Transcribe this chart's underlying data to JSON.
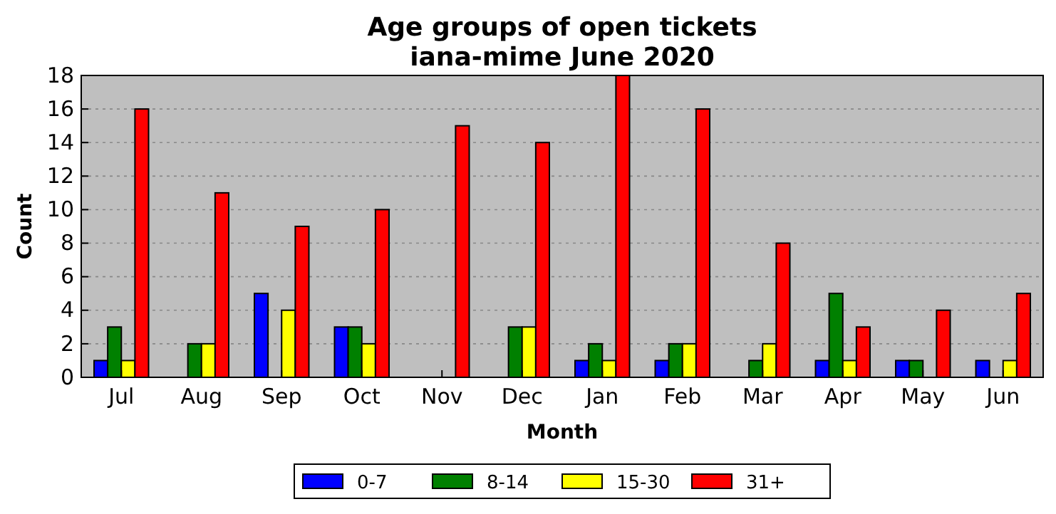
{
  "chart_data": {
    "type": "bar",
    "title": "Age groups of open tickets\niana-mime June 2020",
    "xlabel": "Month",
    "ylabel": "Count",
    "categories": [
      "Jul",
      "Aug",
      "Sep",
      "Oct",
      "Nov",
      "Dec",
      "Jan",
      "Feb",
      "Mar",
      "Apr",
      "May",
      "Jun"
    ],
    "series": [
      {
        "name": "0-7",
        "color": "#0000ff",
        "values": [
          1,
          0,
          5,
          3,
          0,
          0,
          1,
          1,
          0,
          1,
          1,
          1
        ]
      },
      {
        "name": "8-14",
        "color": "#008000",
        "values": [
          3,
          2,
          0,
          3,
          0,
          3,
          2,
          2,
          1,
          5,
          1,
          0
        ]
      },
      {
        "name": "15-30",
        "color": "#ffff00",
        "values": [
          1,
          2,
          4,
          2,
          0,
          3,
          1,
          2,
          2,
          1,
          0,
          1
        ]
      },
      {
        "name": "31+",
        "color": "#ff0000",
        "values": [
          16,
          11,
          9,
          10,
          15,
          14,
          18,
          16,
          8,
          3,
          4,
          5
        ]
      }
    ],
    "ylim": [
      0,
      18
    ],
    "yticks": [
      0,
      2,
      4,
      6,
      8,
      10,
      12,
      14,
      16,
      18
    ],
    "grid": "y",
    "legend": "bottom"
  }
}
